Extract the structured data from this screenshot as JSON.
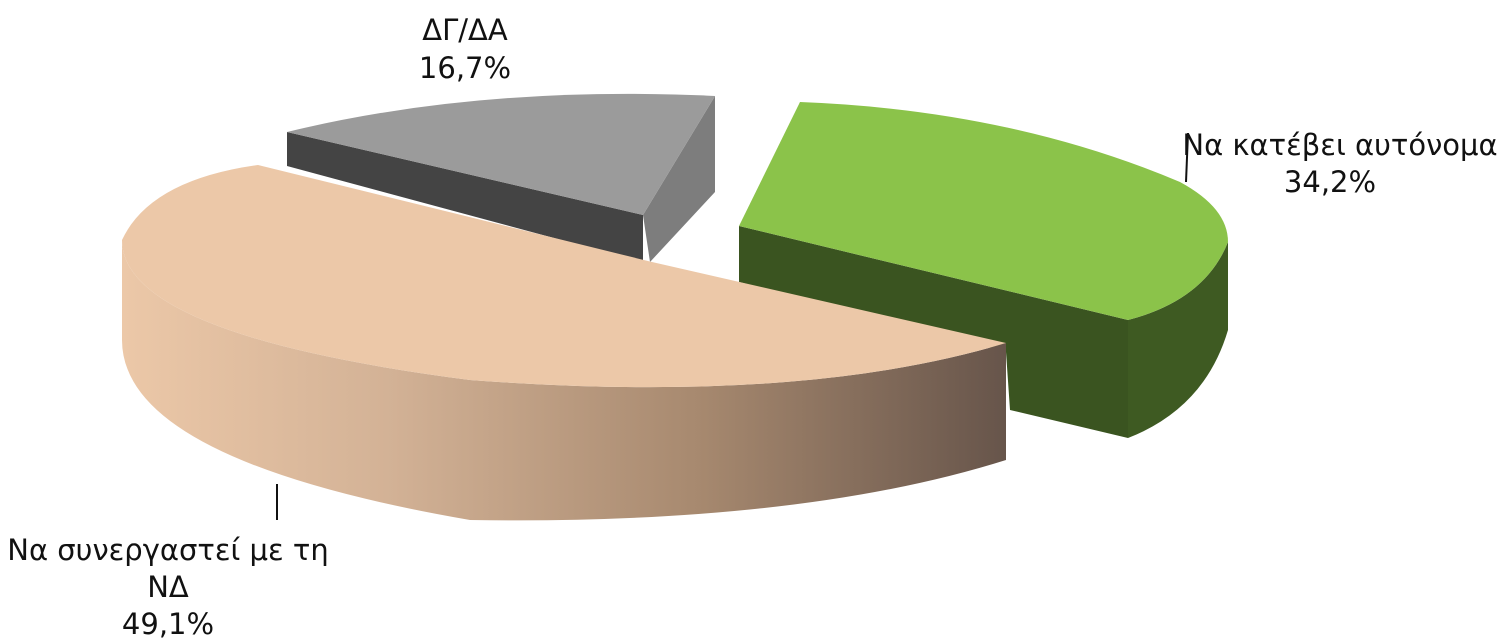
{
  "chart_data": {
    "type": "pie",
    "slices": [
      {
        "label_lines": [
          "Να κατέβει αυτόνομα"
        ],
        "value_label": "34,2%",
        "value": 34.2,
        "color": "#8bc34a",
        "side_color": "#3e5a22"
      },
      {
        "label_lines": [
          "Να συνεργαστεί με τη",
          "ΝΔ"
        ],
        "value_label": "49,1%",
        "value": 49.1,
        "color": "#ecc8a8",
        "side_color": "#7a6250"
      },
      {
        "label_lines": [
          "ΔΓ/ΔΑ"
        ],
        "value_label": "16,7%",
        "value": 16.7,
        "color": "#9b9b9b",
        "side_color": "#454545"
      }
    ]
  }
}
